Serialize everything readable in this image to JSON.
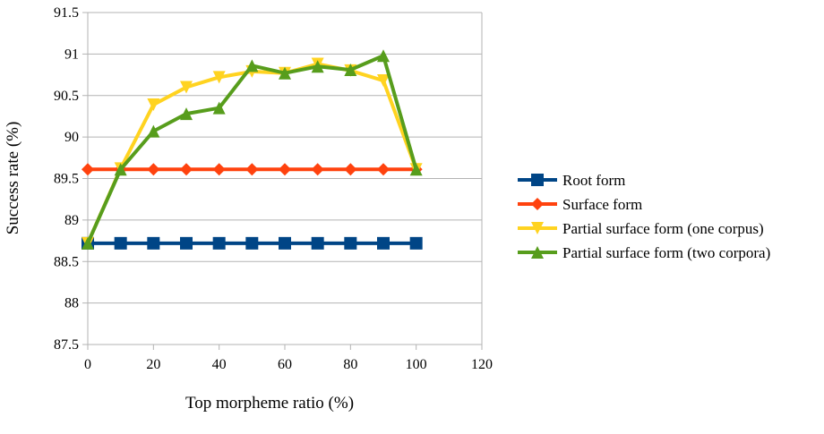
{
  "chart_data": {
    "type": "line",
    "xlabel": "Top morpheme ratio (%)",
    "ylabel": "Success rate (%)",
    "xlim": [
      0,
      120
    ],
    "ylim": [
      87.5,
      91.5
    ],
    "x_ticks": [
      "0",
      "20",
      "40",
      "60",
      "80",
      "100",
      "120"
    ],
    "y_ticks": [
      "87.5",
      "88",
      "88.5",
      "89",
      "89.5",
      "90",
      "90.5",
      "91",
      "91.5"
    ],
    "grid": "horizontal",
    "legend_position": "right",
    "series": [
      {
        "name": "Root form",
        "color": "#004586",
        "marker": "square",
        "x": [
          0,
          10,
          20,
          30,
          40,
          50,
          60,
          70,
          80,
          90,
          100
        ],
        "values": [
          88.72,
          88.72,
          88.72,
          88.72,
          88.72,
          88.72,
          88.72,
          88.72,
          88.72,
          88.72,
          88.72
        ]
      },
      {
        "name": "Surface form",
        "color": "#ff420e",
        "marker": "diamond",
        "x": [
          0,
          10,
          20,
          30,
          40,
          50,
          60,
          70,
          80,
          90,
          100
        ],
        "values": [
          89.61,
          89.61,
          89.61,
          89.61,
          89.61,
          89.61,
          89.61,
          89.61,
          89.61,
          89.61,
          89.61
        ]
      },
      {
        "name": "Partial surface form (one corpus)",
        "color": "#ffd320",
        "marker": "triangle-down",
        "x": [
          0,
          10,
          20,
          30,
          40,
          50,
          60,
          70,
          80,
          90,
          100
        ],
        "values": [
          88.72,
          89.62,
          90.39,
          90.6,
          90.72,
          90.79,
          90.77,
          90.88,
          90.8,
          90.68,
          89.61
        ]
      },
      {
        "name": "Partial surface form (two corpora)",
        "color": "#579d1c",
        "marker": "triangle-up",
        "x": [
          0,
          10,
          20,
          30,
          40,
          50,
          60,
          70,
          80,
          90,
          100
        ],
        "values": [
          88.72,
          89.61,
          90.07,
          90.28,
          90.35,
          90.86,
          90.77,
          90.85,
          90.81,
          90.98,
          89.61
        ]
      }
    ]
  }
}
